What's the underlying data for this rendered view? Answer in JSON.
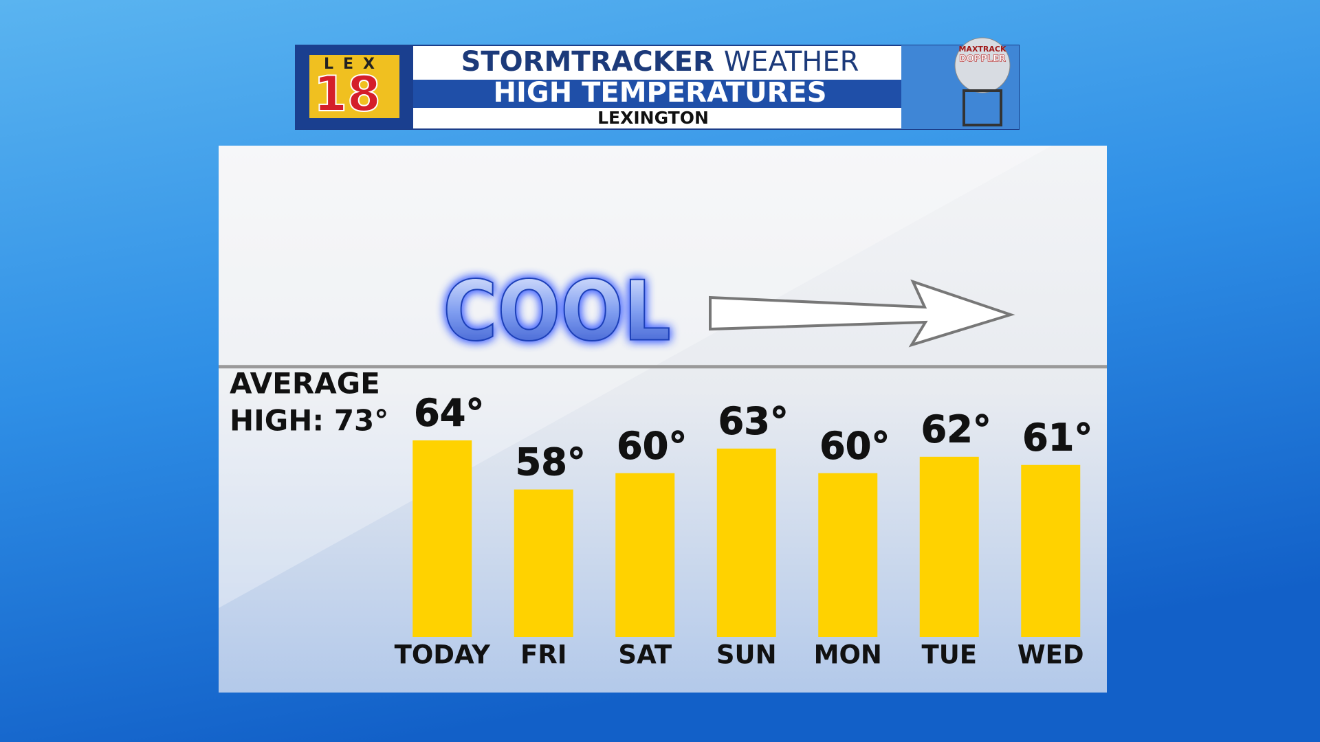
{
  "header": {
    "logo_top": "LEX",
    "logo_number": "18",
    "brand": "STORMTRACKER",
    "brand_suffix": "WEATHER",
    "radar_top": "MAXTRACK",
    "radar_bottom": "DOPPLER"
  },
  "chart_data": {
    "type": "bar",
    "title": "HIGH TEMPERATURES",
    "subtitle": "LEXINGTON",
    "categories": [
      "TODAY",
      "FRI",
      "SAT",
      "SUN",
      "MON",
      "TUE",
      "WED"
    ],
    "values": [
      64,
      58,
      60,
      63,
      60,
      62,
      61
    ],
    "value_labels": [
      "64°",
      "58°",
      "60°",
      "63°",
      "60°",
      "62°",
      "61°"
    ],
    "color": "#ffd200",
    "ylim": [
      40,
      100
    ],
    "average": 73,
    "average_label": [
      "AVERAGE",
      "HIGH: 73°"
    ],
    "annotation": "COOL"
  }
}
